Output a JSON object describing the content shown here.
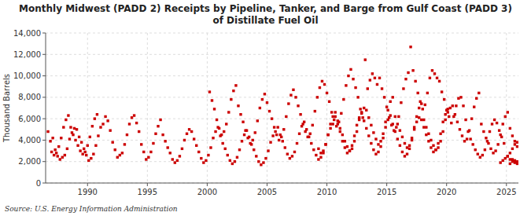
{
  "chart_data": {
    "type": "scatter",
    "title": "Monthly Midwest (PADD 2) Receipts by Pipeline, Tanker, and Barge from Gulf Coast (PADD 3)",
    "subtitle": "of Distillate Fuel Oil",
    "ylabel": "Thousand Barrels",
    "annotations": [
      "Source: U.S. Energy Information Administration"
    ],
    "color": "#cc0000",
    "marker": "square",
    "grid": true,
    "xlim": [
      1986.5,
      2026.0
    ],
    "ylim": [
      0,
      14000
    ],
    "xticks": [
      1990,
      1995,
      2000,
      2005,
      2010,
      2015,
      2020,
      2025
    ],
    "yticks": [
      0,
      {
        "value": 2000,
        "label": "2,000"
      },
      {
        "value": 4000,
        "label": "4,000"
      },
      {
        "value": 6000,
        "label": "6,000"
      },
      {
        "value": 8000,
        "label": "8,000"
      },
      {
        "value": 10000,
        "label": "10,000"
      },
      {
        "value": 12000,
        "label": "12,000"
      },
      {
        "value": 14000,
        "label": "14,000"
      }
    ],
    "x": [
      1986.7,
      1986.9,
      1987.1,
      1987.3,
      1987.5,
      1987.7,
      1987.9,
      1988.1,
      1988.3,
      1988.5,
      1988.7,
      1988.9,
      1989.1,
      1989.3,
      1989.5,
      1989.7,
      1989.9,
      1990.1,
      1990.3,
      1990.5,
      1990.7,
      1990.9,
      1991.1,
      1991.3,
      1991.5,
      1991.7,
      1991.9,
      1992.1,
      1992.3,
      1992.5,
      1992.7,
      1992.9,
      1993.1,
      1993.3,
      1993.5,
      1993.7,
      1993.9,
      1994.1,
      1994.3,
      1994.5,
      1994.7,
      1994.9,
      1995.1,
      1995.3,
      1995.5,
      1995.7,
      1995.9,
      1996.1,
      1996.3,
      1996.5,
      1996.7,
      1996.9,
      1997.1,
      1997.3,
      1997.5,
      1997.7,
      1997.9,
      1998.1,
      1998.3,
      1998.5,
      1998.7,
      1998.9,
      1999.1,
      1999.3,
      1999.5,
      1999.7,
      1999.9,
      2000.1,
      2000.3,
      2000.5,
      2000.7,
      2000.9,
      2001.1,
      2001.3,
      2001.5,
      2001.7,
      2001.9,
      2002.1,
      2002.3,
      2002.5,
      2002.7,
      2002.9,
      2003.1,
      2003.3,
      2003.5,
      2003.7,
      2003.9,
      2004.1,
      2004.3,
      2004.5,
      2004.7,
      2004.9,
      2005.1,
      2005.3,
      2005.5,
      2005.7,
      2005.9,
      2006.1,
      2006.3,
      2006.5,
      2006.7,
      2006.9,
      2007.1,
      2007.3,
      2007.5,
      2007.7,
      2007.9,
      2008.1,
      2008.3,
      2008.5,
      2008.7,
      2008.9,
      2009.1,
      2009.3,
      2009.5,
      2009.7,
      2009.9,
      2010.1,
      2010.3,
      2010.5,
      2010.7,
      2010.9,
      2011.1,
      2011.3,
      2011.5,
      2011.7,
      2011.9,
      2012.1,
      2012.3,
      2012.5,
      2012.7,
      2012.9,
      2013.1,
      2013.3,
      2013.5,
      2013.7,
      2013.9,
      2014.1,
      2014.3,
      2014.5,
      2014.7,
      2014.9,
      2015.1,
      2015.3,
      2015.5,
      2015.7,
      2015.9,
      2016.1,
      2016.3,
      2016.5,
      2016.7,
      2016.9,
      2017.1,
      2017.3,
      2017.5,
      2017.7,
      2017.9,
      2018.1,
      2018.3,
      2018.5,
      2018.7,
      2018.9,
      2019.1,
      2019.3,
      2019.5,
      2019.7,
      2019.9,
      2020.1,
      2000.2,
      2000.4,
      2000.6,
      2000.8,
      2001.0,
      2001.2,
      2001.4,
      2001.6,
      2001.8,
      2002.0,
      2002.2,
      2002.4,
      2002.6,
      2002.8,
      2003.0,
      2003.2,
      2003.4,
      2003.6,
      2003.8,
      2004.0,
      2004.2,
      2004.4,
      2004.6,
      2004.8,
      2005.0,
      2005.2,
      2005.4,
      2005.6,
      2005.8,
      2006.0,
      2006.2,
      2006.4,
      2006.6,
      2006.8,
      2007.0,
      2007.2,
      2007.4,
      2007.6,
      2007.8,
      2008.0,
      2008.2,
      2008.4,
      2008.6,
      2008.8,
      2009.0,
      2009.2,
      2009.4,
      2009.6,
      2009.8,
      2010.0,
      2010.2,
      2010.4,
      2010.6,
      2010.8,
      2011.0,
      2011.2,
      2011.4,
      2011.6,
      2011.8,
      2012.0,
      2012.2,
      2012.4,
      2012.6,
      2012.8,
      2013.0,
      2013.2,
      2013.4,
      2013.6,
      2013.8,
      2014.0,
      2014.2,
      2014.4,
      2014.6,
      2014.8,
      2015.0,
      2015.2,
      2015.4,
      2015.6,
      2015.8,
      2016.0,
      2016.2,
      2016.4,
      2016.6,
      2016.8,
      2017.0,
      2017.2,
      2017.4,
      2017.6,
      2017.8,
      2018.0,
      2018.2,
      2018.4,
      2018.6,
      2018.8,
      2019.0,
      2019.2,
      2019.4,
      2019.6,
      2019.8,
      2020.0,
      2020.2,
      2020.4,
      2020.6,
      2020.8,
      2021.0,
      2021.2,
      2021.4,
      2021.6,
      2021.8,
      2022.0,
      2022.2,
      2022.4,
      2022.6,
      2022.8,
      2023.0,
      2023.2,
      2023.4,
      2023.6,
      2023.8,
      2024.0,
      2024.2,
      2024.4,
      2024.6,
      2024.8,
      2009.3,
      2009.5,
      2009.7,
      2009.9,
      2010.1,
      2010.3,
      2010.5,
      2010.7,
      2010.9,
      2011.1,
      2011.3,
      2011.5,
      2011.7,
      2011.9,
      2012.1,
      2012.3,
      2012.5,
      2012.7,
      2012.9,
      2013.1,
      2013.3,
      2013.5,
      2013.7,
      2013.9,
      2014.1,
      2014.3,
      2014.5,
      2014.7,
      2014.9,
      2015.1,
      2015.3,
      2015.5,
      2015.7,
      2015.9,
      2016.1,
      2016.3,
      2016.5,
      2016.7,
      2016.9,
      2017.1,
      2017.3,
      2017.5,
      2017.7,
      2017.9,
      2018.1,
      2018.3,
      2018.5,
      2018.7,
      2018.9,
      2019.1,
      2019.3,
      2019.5,
      2019.7,
      2019.9,
      2020.1,
      2020.3,
      2020.5,
      2020.7,
      2020.9,
      2021.1,
      2021.3,
      2021.5,
      2021.7,
      2021.9,
      2022.1,
      2022.3,
      2022.5,
      2022.7,
      2022.9,
      2023.1,
      2023.3,
      2023.5,
      2023.7,
      2023.9,
      2024.1,
      2024.3,
      2024.5,
      2024.7,
      2024.9,
      2025.1,
      2025.3,
      2025.5,
      2025.7,
      2025.9,
      1987.0,
      1987.2,
      1987.4,
      1987.6,
      1987.8,
      1988.0,
      1988.2,
      1988.4,
      1988.6,
      1988.8,
      1989.0,
      1989.2,
      1989.4,
      1989.6,
      1989.8,
      1990.0,
      1990.2,
      1990.4,
      1990.6,
      1990.8,
      2025.5,
      2025.7,
      2025.9,
      2025.3,
      2024.5,
      2024.7,
      2024.9,
      2025.1,
      2025.3,
      2025.5,
      2025.7,
      2025.9,
      2025.1,
      2025.3,
      2025.5,
      2025.7,
      2025.9
    ],
    "values": [
      4800,
      3900,
      4200,
      3100,
      2500,
      2200,
      2400,
      2600,
      3200,
      4100,
      4700,
      5100,
      5000,
      4300,
      3800,
      3200,
      2600,
      2100,
      2300,
      2700,
      3500,
      4400,
      5200,
      5500,
      6200,
      5800,
      4900,
      3800,
      3100,
      2400,
      2600,
      2800,
      3600,
      4500,
      5500,
      6100,
      6300,
      5600,
      4800,
      3600,
      2900,
      2200,
      2400,
      2900,
      3700,
      4600,
      5300,
      5900,
      4500,
      3900,
      3300,
      2800,
      2200,
      1900,
      2100,
      2500,
      3200,
      4000,
      4600,
      5000,
      4800,
      4100,
      3500,
      2900,
      2300,
      1900,
      2100,
      2600,
      3300,
      4200,
      4800,
      5200,
      4400,
      3700,
      3200,
      2600,
      2100,
      1800,
      2000,
      2400,
      3100,
      3900,
      4500,
      4900,
      4300,
      3600,
      3100,
      2500,
      2000,
      1700,
      1900,
      2300,
      3000,
      3800,
      4400,
      4800,
      5200,
      4500,
      3900,
      3300,
      2700,
      2300,
      2500,
      2900,
      3700,
      4600,
      5300,
      5700,
      5000,
      4300,
      3700,
      3100,
      2600,
      2200,
      2400,
      2800,
      3600,
      4500,
      5100,
      5500,
      6200,
      5500,
      4800,
      3900,
      3300,
      2800,
      3000,
      3500,
      4400,
      5400,
      6100,
      6500,
      5800,
      5100,
      4400,
      3700,
      3100,
      2700,
      2900,
      3400,
      4200,
      5200,
      5900,
      6300,
      5500,
      4800,
      4100,
      3500,
      2900,
      2500,
      2700,
      3200,
      4000,
      5000,
      5700,
      6100,
      5900,
      5200,
      4500,
      3900,
      3300,
      2900,
      3100,
      3700,
      4600,
      5700,
      6400,
      6900,
      8500,
      7700,
      6900,
      5900,
      5100,
      4500,
      4800,
      5500,
      6600,
      7800,
      8600,
      9100,
      7200,
      6400,
      5700,
      4900,
      4200,
      3700,
      4000,
      4700,
      5800,
      7000,
      7800,
      8300,
      7500,
      6700,
      6000,
      5200,
      4500,
      4000,
      4300,
      5000,
      6200,
      7400,
      8200,
      8700,
      8000,
      7200,
      6400,
      5500,
      4800,
      4300,
      4600,
      5400,
      6700,
      8000,
      8900,
      9500,
      9200,
      8400,
      7600,
      6600,
      5900,
      5300,
      5700,
      6500,
      7800,
      9100,
      10000,
      10600,
      9700,
      8900,
      8000,
      6900,
      6100,
      11500,
      8800,
      9600,
      10200,
      9800,
      9200,
      9800,
      8800,
      8000,
      7100,
      6100,
      5400,
      4900,
      5200,
      6200,
      7500,
      8800,
      9700,
      10300,
      12700,
      10500,
      9500,
      8400,
      7600,
      6900,
      7300,
      8400,
      9800,
      10500,
      10200,
      9800,
      9500,
      8500,
      7800,
      6800,
      6200,
      5600,
      6200,
      7200,
      7900,
      8000,
      7200,
      5900,
      4800,
      4100,
      3600,
      3100,
      2700,
      2400,
      2600,
      3100,
      3900,
      4800,
      5500,
      5900,
      5600,
      4900,
      4300,
      3700,
      3200,
      2800,
      3000,
      3600,
      4500,
      5500,
      6200,
      6600,
      5800,
      5100,
      4500,
      3900,
      3400,
      3000,
      3200,
      3900,
      4800,
      5900,
      6600,
      7000,
      6800,
      6100,
      5400,
      4700,
      4100,
      3600,
      3900,
      4600,
      5700,
      6800,
      7600,
      8000,
      6200,
      5500,
      4900,
      4300,
      3700,
      3300,
      3500,
      4200,
      5200,
      6200,
      7000,
      7400,
      5900,
      5200,
      4600,
      4000,
      3500,
      3100,
      3300,
      3900,
      4800,
      5900,
      6600,
      7000,
      7200,
      6400,
      5700,
      5000,
      4400,
      3900,
      4100,
      4900,
      6000,
      7100,
      7900,
      8400,
      5500,
      4800,
      4200,
      3700,
      3200,
      2800,
      3000,
      3600,
      4500,
      5500,
      6200,
      6600,
      5100,
      4400,
      3900,
      3400,
      2900,
      2600,
      2800,
      3400,
      4200,
      5200,
      5900,
      6300,
      5200,
      4500,
      4000,
      3500,
      3000,
      2700,
      2900,
      3500,
      4300,
      5300,
      6000,
      6400,
      2200,
      2100,
      2000,
      1800,
      1900,
      2100,
      2300,
      2500,
      2800,
      3200,
      3600,
      3800,
      2500,
      2200,
      2000,
      1900,
      1800
    ]
  }
}
